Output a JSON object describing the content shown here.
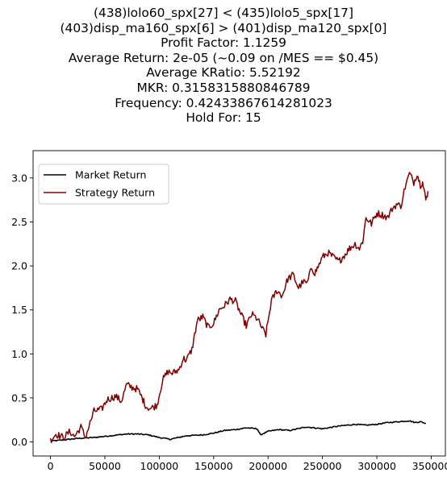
{
  "chart_data": {
    "type": "line",
    "title_lines": [
      "(438)lolo60_spx[27] < (435)lolo5_spx[17]",
      "(403)disp_ma160_spx[6] > (401)disp_ma120_spx[0]",
      "Profit Factor: 1.1259",
      "Average Return: 2e-05 (~0.09 on /MES == $0.45)",
      "Average KRatio: 5.52192",
      "MKR: 0.3158315880846789",
      "Frequency: 0.42433867614281023",
      "Hold For: 15"
    ],
    "xlim": [
      -16000,
      363000
    ],
    "ylim": [
      -0.16,
      3.31
    ],
    "x_ticks": [
      0,
      50000,
      100000,
      150000,
      200000,
      250000,
      300000,
      350000
    ],
    "x_tick_labels": [
      "0",
      "50000",
      "100000",
      "150000",
      "200000",
      "250000",
      "300000",
      "350000"
    ],
    "y_ticks": [
      0.0,
      0.5,
      1.0,
      1.5,
      2.0,
      2.5,
      3.0
    ],
    "y_tick_labels": [
      "0.0",
      "0.5",
      "1.0",
      "1.5",
      "2.0",
      "2.5",
      "3.0"
    ],
    "grid": false,
    "legend_position": "upper-left",
    "series": [
      {
        "name": "Market Return",
        "color": "#000000",
        "noise": 0.006,
        "x": [
          0,
          10000,
          25000,
          40000,
          55000,
          70000,
          80000,
          90000,
          100000,
          110000,
          125000,
          140000,
          150000,
          160000,
          170000,
          180000,
          190000,
          193000,
          200000,
          210000,
          220000,
          235000,
          250000,
          265000,
          280000,
          290000,
          300000,
          310000,
          320000,
          330000,
          335000,
          340000,
          345000
        ],
        "y": [
          0.01,
          0.02,
          0.04,
          0.05,
          0.07,
          0.09,
          0.09,
          0.08,
          0.05,
          0.03,
          0.07,
          0.08,
          0.1,
          0.13,
          0.14,
          0.16,
          0.15,
          0.08,
          0.12,
          0.14,
          0.13,
          0.17,
          0.15,
          0.18,
          0.2,
          0.19,
          0.2,
          0.22,
          0.23,
          0.24,
          0.22,
          0.23,
          0.21
        ]
      },
      {
        "name": "Strategy Return",
        "color": "#800000",
        "noise": 0.04,
        "x": [
          0,
          5000,
          12000,
          18000,
          22000,
          28000,
          32000,
          40000,
          47000,
          52000,
          60000,
          65000,
          70000,
          75000,
          80000,
          85000,
          88000,
          92000,
          98000,
          103000,
          108000,
          112000,
          118000,
          122000,
          125000,
          130000,
          135000,
          140000,
          145000,
          150000,
          155000,
          160000,
          165000,
          170000,
          175000,
          180000,
          185000,
          190000,
          195000,
          198000,
          203000,
          208000,
          213000,
          218000,
          223000,
          228000,
          232000,
          236000,
          240000,
          243000,
          246000,
          250000,
          255000,
          260000,
          265000,
          270000,
          275000,
          280000,
          284000,
          287000,
          290000,
          295000,
          300000,
          305000,
          310000,
          314000,
          318000,
          322000,
          326000,
          330000,
          334000,
          337000,
          340000,
          342000,
          345000,
          347000
        ],
        "y": [
          0.02,
          0.09,
          0.05,
          0.12,
          0.06,
          0.17,
          0.05,
          0.35,
          0.37,
          0.48,
          0.52,
          0.46,
          0.65,
          0.62,
          0.6,
          0.48,
          0.4,
          0.38,
          0.42,
          0.7,
          0.8,
          0.78,
          0.82,
          0.95,
          0.93,
          1.05,
          1.38,
          1.42,
          1.3,
          1.35,
          1.5,
          1.55,
          1.62,
          1.6,
          1.45,
          1.32,
          1.45,
          1.4,
          1.28,
          1.22,
          1.6,
          1.72,
          1.66,
          1.85,
          1.9,
          1.75,
          1.82,
          1.8,
          1.98,
          1.92,
          1.99,
          2.1,
          2.15,
          2.1,
          2.05,
          2.12,
          2.2,
          2.25,
          2.2,
          2.28,
          2.55,
          2.48,
          2.6,
          2.58,
          2.55,
          2.65,
          2.7,
          2.68,
          2.9,
          3.05,
          2.95,
          3.05,
          2.92,
          2.95,
          2.75,
          2.85
        ]
      }
    ]
  }
}
